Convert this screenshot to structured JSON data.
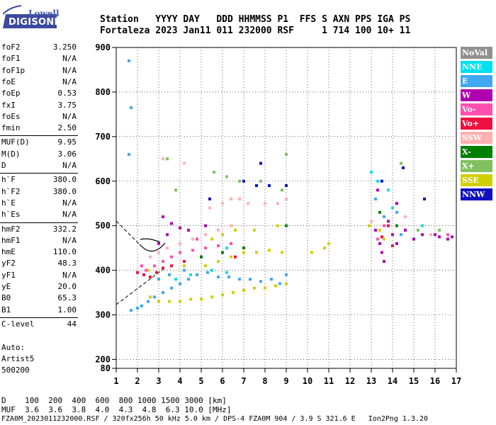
{
  "header": {
    "line1": "Station   YYYY DAY   DDD HHMMSS P1  FFS S AXN PPS IGA PS",
    "line2": "Fortaleza 2023 Jan11 011 232000 RSF     1 714 100 10+ 11"
  },
  "logo": {
    "top": "Lowell",
    "bottom": "DIGISONDE"
  },
  "params": [
    {
      "name": "foF2",
      "value": "3.250"
    },
    {
      "name": "foF1",
      "value": "N/A"
    },
    {
      "name": "foF1p",
      "value": "N/A"
    },
    {
      "name": "foE",
      "value": "N/A"
    },
    {
      "name": "foEp",
      "value": "0.53"
    },
    {
      "name": "fxI",
      "value": "3.75"
    },
    {
      "name": "foEs",
      "value": "N/A"
    },
    {
      "name": "fmin",
      "value": "2.50"
    },
    {
      "name": "MUF(D)",
      "value": "9.95"
    },
    {
      "name": "M(D)",
      "value": "3.06"
    },
    {
      "name": "D",
      "value": "N/A"
    },
    {
      "name": "h`F",
      "value": "380.0"
    },
    {
      "name": "h`F2",
      "value": "380.0"
    },
    {
      "name": "h`E",
      "value": "N/A"
    },
    {
      "name": "h`Es",
      "value": "N/A"
    },
    {
      "name": "hmF2",
      "value": "332.2"
    },
    {
      "name": "hmF1",
      "value": "N/A"
    },
    {
      "name": "hmE",
      "value": "110.0"
    },
    {
      "name": "yF2",
      "value": "48.3"
    },
    {
      "name": "yF1",
      "value": "N/A"
    },
    {
      "name": "yE",
      "value": "20.0"
    },
    {
      "name": "B0",
      "value": "65.3"
    },
    {
      "name": "B1",
      "value": "1.00"
    },
    {
      "name": "C-level",
      "value": "44"
    }
  ],
  "auto": {
    "line1": "Auto:",
    "line2": "Artist5",
    "line3": "500200"
  },
  "footer": {
    "d_line": "D    100  200  400  600  800 1000 1500 3000 [km]",
    "muf_line": "MUF  3.6  3.6  3.8  4.0  4.3  4.8  6.3 10.0 [MHz]",
    "file_line": "FZA0M_2023011232000.RSF / 320fx256h 50 kHz 5.0 km / DPS-4 FZA0M 904 / 3.9 S 321.6 E   Ion2Png 1.3.20"
  },
  "legend": [
    {
      "label": "NoVal",
      "color": "#909090"
    },
    {
      "label": "NNE",
      "color": "#00e0f0"
    },
    {
      "label": "E",
      "color": "#40a8f0"
    },
    {
      "label": "W",
      "color": "#b000b0"
    },
    {
      "label": "Vo-",
      "color": "#ff50b0"
    },
    {
      "label": "Vo+",
      "color": "#f01040"
    },
    {
      "label": "SSW",
      "color": "#ffb0b0"
    },
    {
      "label": "X-",
      "color": "#008000"
    },
    {
      "label": "X+",
      "color": "#80c060"
    },
    {
      "label": "SSE",
      "color": "#d0d000"
    },
    {
      "label": "NNW",
      "color": "#1010c0"
    }
  ],
  "chart_data": {
    "type": "scatter",
    "title": "",
    "xlabel": "",
    "ylabel": "",
    "xlim": [
      1,
      17
    ],
    "ylim": [
      80,
      900
    ],
    "xticks": [
      1,
      2,
      3,
      4,
      5,
      6,
      7,
      8,
      9,
      10,
      11,
      12,
      13,
      14,
      15,
      16,
      17
    ],
    "yticks": [
      80,
      200,
      300,
      400,
      500,
      600,
      700,
      800,
      900
    ],
    "grid": true,
    "legend_position": "right",
    "series": [
      {
        "name": "SSE",
        "color": "#d0d000",
        "points": [
          [
            2.6,
            340
          ],
          [
            3.0,
            330
          ],
          [
            3.5,
            330
          ],
          [
            4.0,
            330
          ],
          [
            4.5,
            335
          ],
          [
            5.0,
            335
          ],
          [
            5.5,
            340
          ],
          [
            6.0,
            345
          ],
          [
            6.5,
            350
          ],
          [
            7.0,
            355
          ],
          [
            7.5,
            360
          ],
          [
            8.0,
            360
          ],
          [
            8.5,
            365
          ],
          [
            9.0,
            370
          ],
          [
            5.2,
            410
          ],
          [
            5.8,
            420
          ],
          [
            6.4,
            430
          ],
          [
            7.0,
            440
          ],
          [
            7.6,
            440
          ],
          [
            8.2,
            445
          ],
          [
            8.8,
            440
          ],
          [
            10.2,
            440
          ],
          [
            10.8,
            450
          ],
          [
            11.0,
            460
          ],
          [
            5.5,
            470
          ],
          [
            6.0,
            480
          ],
          [
            6.6,
            490
          ],
          [
            7.5,
            490
          ],
          [
            8.6,
            500
          ],
          [
            2.5,
            400
          ],
          [
            3.2,
            405
          ],
          [
            4.2,
            410
          ],
          [
            12.9,
            500
          ],
          [
            13.4,
            490
          ],
          [
            13.6,
            470
          ]
        ]
      },
      {
        "name": "E",
        "color": "#40a8f0",
        "points": [
          [
            1.7,
            310
          ],
          [
            2.0,
            315
          ],
          [
            2.2,
            320
          ],
          [
            2.5,
            330
          ],
          [
            2.8,
            340
          ],
          [
            3.2,
            350
          ],
          [
            3.6,
            360
          ],
          [
            4.0,
            370
          ],
          [
            4.4,
            380
          ],
          [
            4.8,
            390
          ],
          [
            5.3,
            395
          ],
          [
            5.8,
            385
          ],
          [
            6.3,
            385
          ],
          [
            6.8,
            380
          ],
          [
            7.3,
            380
          ],
          [
            7.8,
            375
          ],
          [
            8.3,
            380
          ],
          [
            8.7,
            370
          ],
          [
            9.0,
            390
          ],
          [
            3.0,
            380
          ],
          [
            3.5,
            390
          ],
          [
            4.2,
            400
          ],
          [
            1.6,
            870
          ],
          [
            1.7,
            765
          ],
          [
            1.6,
            660
          ],
          [
            13.2,
            560
          ],
          [
            13.6,
            520
          ],
          [
            14.2,
            530
          ],
          [
            14.4,
            480
          ],
          [
            15.2,
            490
          ]
        ]
      },
      {
        "name": "NNE",
        "color": "#00e0f0",
        "points": [
          [
            3.8,
            380
          ],
          [
            4.5,
            390
          ],
          [
            5.5,
            400
          ],
          [
            6.2,
            395
          ],
          [
            13.0,
            620
          ],
          [
            13.3,
            600
          ],
          [
            13.8,
            580
          ],
          [
            14.0,
            540
          ],
          [
            15.4,
            500
          ],
          [
            6.2,
            450
          ]
        ]
      },
      {
        "name": "W",
        "color": "#b000b0",
        "points": [
          [
            3.2,
            520
          ],
          [
            3.6,
            505
          ],
          [
            4.0,
            495
          ],
          [
            4.4,
            490
          ],
          [
            3.4,
            480
          ],
          [
            4.8,
            470
          ],
          [
            5.2,
            500
          ],
          [
            3.0,
            460
          ],
          [
            13.2,
            490
          ],
          [
            13.4,
            460
          ],
          [
            13.5,
            440
          ],
          [
            13.6,
            420
          ],
          [
            13.8,
            510
          ],
          [
            14.0,
            480
          ],
          [
            14.2,
            460
          ],
          [
            14.6,
            490
          ],
          [
            15.0,
            470
          ],
          [
            15.4,
            480
          ],
          [
            16.0,
            480
          ],
          [
            16.2,
            475
          ],
          [
            16.6,
            470
          ],
          [
            16.8,
            475
          ],
          [
            13.3,
            580
          ],
          [
            14.2,
            550
          ]
        ]
      },
      {
        "name": "Vo-",
        "color": "#ff50b0",
        "points": [
          [
            2.4,
            400
          ],
          [
            2.8,
            410
          ],
          [
            3.2,
            420
          ],
          [
            3.6,
            430
          ],
          [
            4.0,
            440
          ],
          [
            4.6,
            445
          ],
          [
            5.2,
            450
          ],
          [
            5.8,
            455
          ],
          [
            6.4,
            460
          ],
          [
            2.2,
            410
          ],
          [
            4.0,
            460
          ],
          [
            4.8,
            470
          ],
          [
            13.3,
            470
          ],
          [
            13.6,
            500
          ],
          [
            16.6,
            480
          ]
        ]
      },
      {
        "name": "Vo+",
        "color": "#f01040",
        "points": [
          [
            2.0,
            395
          ],
          [
            2.3,
            390
          ],
          [
            2.6,
            385
          ],
          [
            2.9,
            395
          ],
          [
            3.2,
            405
          ],
          [
            3.6,
            410
          ],
          [
            4.2,
            420
          ],
          [
            5.0,
            430
          ],
          [
            6.0,
            440
          ],
          [
            6.6,
            430
          ],
          [
            13.5,
            475
          ],
          [
            14.0,
            455
          ],
          [
            13.8,
            500
          ]
        ]
      },
      {
        "name": "SSW",
        "color": "#ffb0b0",
        "points": [
          [
            2.6,
            430
          ],
          [
            3.0,
            440
          ],
          [
            3.4,
            450
          ],
          [
            4.0,
            460
          ],
          [
            4.6,
            470
          ],
          [
            5.2,
            480
          ],
          [
            5.8,
            490
          ],
          [
            6.4,
            500
          ],
          [
            6.0,
            550
          ],
          [
            6.4,
            560
          ],
          [
            6.8,
            560
          ],
          [
            7.2,
            550
          ],
          [
            8.0,
            550
          ],
          [
            8.6,
            550
          ],
          [
            9.0,
            560
          ],
          [
            5.4,
            540
          ],
          [
            3.2,
            650
          ],
          [
            4.2,
            640
          ],
          [
            13.0,
            510
          ],
          [
            14.6,
            520
          ],
          [
            15.8,
            480
          ]
        ]
      },
      {
        "name": "X-",
        "color": "#008000",
        "points": [
          [
            5.0,
            430
          ],
          [
            6.0,
            440
          ],
          [
            7.0,
            450
          ],
          [
            9.0,
            500
          ],
          [
            13.4,
            530
          ],
          [
            14.2,
            500
          ]
        ]
      },
      {
        "name": "X+",
        "color": "#80c060",
        "points": [
          [
            3.4,
            650
          ],
          [
            5.6,
            620
          ],
          [
            6.2,
            610
          ],
          [
            6.8,
            600
          ],
          [
            7.8,
            600
          ],
          [
            8.8,
            580
          ],
          [
            9.0,
            660
          ],
          [
            3.8,
            580
          ],
          [
            14.4,
            640
          ],
          [
            15.2,
            490
          ],
          [
            16.2,
            490
          ]
        ]
      },
      {
        "name": "NNW",
        "color": "#1010c0",
        "points": [
          [
            5.4,
            560
          ],
          [
            7.0,
            600
          ],
          [
            7.6,
            590
          ],
          [
            7.8,
            640
          ],
          [
            8.2,
            590
          ],
          [
            9.0,
            590
          ],
          [
            13.5,
            600
          ],
          [
            14.5,
            630
          ],
          [
            15.5,
            560
          ]
        ]
      }
    ]
  }
}
